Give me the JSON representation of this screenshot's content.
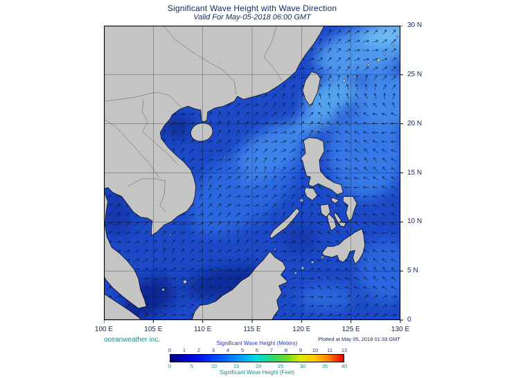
{
  "header": {
    "title": "Significant Wave Height with Wave Direction",
    "subtitle": "Valid For May-05-2018 06:00 GMT"
  },
  "footer": {
    "branding": "oceanweather inc.",
    "plotted_at": "Plotted at May 05, 2018 01:33 GMT"
  },
  "axes": {
    "lon_range": [
      100,
      130
    ],
    "lat_range": [
      0,
      30
    ],
    "lon_tick_values": [
      100,
      105,
      110,
      115,
      120,
      125,
      130
    ],
    "lon_tick_labels": [
      "100 E",
      "105 E",
      "110 E",
      "115 E",
      "120 E",
      "125 E",
      "130 E"
    ],
    "lat_tick_values": [
      30,
      25,
      20,
      15,
      10,
      5,
      0
    ],
    "lat_tick_labels": [
      "30 N",
      "25 N",
      "20 N",
      "15 N",
      "10 N",
      "5 N",
      "0"
    ]
  },
  "legend": {
    "meters_label": "Significant Wave Height (Meters)",
    "feet_label": "Significant Wave Height (Feet)",
    "meters_ticks": [
      0,
      1,
      2,
      3,
      4,
      5,
      6,
      7,
      8,
      9,
      10,
      11,
      12
    ],
    "feet_ticks": [
      0,
      5,
      10,
      15,
      20,
      25,
      30,
      35,
      40
    ],
    "feet_per_meter": 3.28084,
    "gradient": [
      {
        "v": 0,
        "color": "#000080"
      },
      {
        "v": 1,
        "color": "#0000C8"
      },
      {
        "v": 2,
        "color": "#0014F0"
      },
      {
        "v": 3,
        "color": "#0040FF"
      },
      {
        "v": 4,
        "color": "#0070FF"
      },
      {
        "v": 5,
        "color": "#00A8FF"
      },
      {
        "v": 6,
        "color": "#00DCE0"
      },
      {
        "v": 7,
        "color": "#28D878"
      },
      {
        "v": 8,
        "color": "#64DC28"
      },
      {
        "v": 9,
        "color": "#DCE800"
      },
      {
        "v": 10,
        "color": "#FFC800"
      },
      {
        "v": 11,
        "color": "#FF7800"
      },
      {
        "v": 12,
        "color": "#E80000"
      }
    ]
  },
  "map_style": {
    "land_color": "#c4c4c4",
    "coast_color": "#000000",
    "ocean_base_color": "#1C49C8",
    "grid_color": "#000000",
    "arrow_color": "#0A1C3C",
    "navy_text_color": "#10265C",
    "meters_text_color": "#2238B8",
    "teal_text_color": "#148C8C"
  },
  "wave_field": {
    "units": "meters",
    "approx_open_south_china_sea_m": "2-3",
    "approx_luzon_strait_east_china_sea_m": "3-4",
    "approx_coastal_and_gulf_waters_m": "<1.5",
    "arrows_meaning": "wave direction"
  }
}
